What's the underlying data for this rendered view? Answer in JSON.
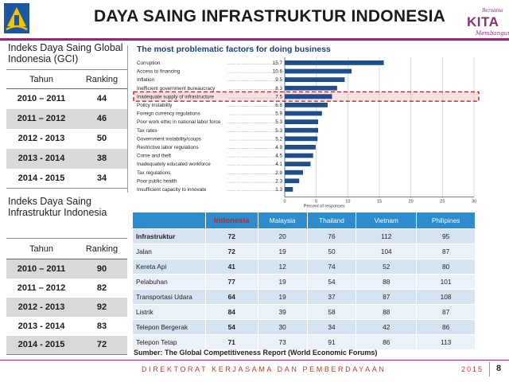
{
  "header": {
    "title": "DAYA SAING INFRASTRUKTUR INDONESIA",
    "logo_right": {
      "top": "Bersama",
      "main": "KITA",
      "bottom": "Membangun"
    },
    "colors": {
      "accent": "#8c2a6e",
      "logo_yellow": "#f2c400",
      "logo_blue": "#1f56a4"
    }
  },
  "gci": {
    "heading": "Indeks Daya Saing Global Indonesia (GCI)",
    "col_year": "Tahun",
    "col_rank": "Ranking",
    "rows": [
      {
        "year": "2010 – 2011",
        "rank": "44"
      },
      {
        "year": "2011 – 2012",
        "rank": "46"
      },
      {
        "year": "2012 - 2013",
        "rank": "50"
      },
      {
        "year": "2013 - 2014",
        "rank": "38"
      },
      {
        "year": "2014 - 2015",
        "rank": "34"
      }
    ]
  },
  "infra": {
    "heading": "Indeks Daya Saing Infrastruktur Indonesia",
    "col_year": "Tahun",
    "col_rank": "Ranking",
    "rows": [
      {
        "year": "2010 – 2011",
        "rank": "90"
      },
      {
        "year": "2011 – 2012",
        "rank": "82"
      },
      {
        "year": "2012 - 2013",
        "rank": "92"
      },
      {
        "year": "2013 - 2014",
        "rank": "83"
      },
      {
        "year": "2014 - 2015",
        "rank": "72"
      }
    ]
  },
  "chart_data": {
    "type": "bar",
    "orientation": "horizontal",
    "title": "The most problematic factors for doing business",
    "xlabel": "Percent of responses",
    "xlim": [
      0,
      30
    ],
    "xticks": [
      "0",
      "5",
      "10",
      "15",
      "20",
      "25",
      "30"
    ],
    "bar_color": "#1f4e8c",
    "highlight_color": "#c0272d",
    "highlight_index": 4,
    "categories": [
      "Corruption",
      "Access to financing",
      "Inflation",
      "Inefficient government bureaucracy",
      "Inadequate supply of infrastructure",
      "Policy instability",
      "Foreign currency regulations",
      "Poor work ethic in national labor force",
      "Tax rates",
      "Government instability/coups",
      "Restrictive labor regulations",
      "Crime and theft",
      "Inadequately educated workforce",
      "Tax regulations",
      "Poor public health",
      "Insufficient capacity to innovate"
    ],
    "values": [
      15.7,
      10.6,
      9.5,
      8.3,
      7.5,
      6.8,
      5.9,
      5.3,
      5.3,
      5.2,
      4.9,
      4.5,
      4.1,
      2.9,
      2.3,
      1.3
    ],
    "value_labels": [
      "15.7",
      "10.6",
      "9.5",
      "8.3",
      "7.5",
      "6.8",
      "5.9",
      "5.3",
      "5.3",
      "5.2",
      "4.9",
      "4.5",
      "4.1",
      "2.9",
      "2.3",
      "1.3"
    ]
  },
  "comparison": {
    "columns": [
      "",
      "Indonesia",
      "Malaysia",
      "Thailand",
      "Vietnam",
      "Philipines"
    ],
    "rows": [
      {
        "sector": "Infrastruktur",
        "values": [
          "72",
          "20",
          "76",
          "112",
          "95"
        ]
      },
      {
        "sector": "Jalan",
        "values": [
          "72",
          "19",
          "50",
          "104",
          "87"
        ]
      },
      {
        "sector": "Kereta Api",
        "values": [
          "41",
          "12",
          "74",
          "52",
          "80"
        ]
      },
      {
        "sector": "Pelabuhan",
        "values": [
          "77",
          "19",
          "54",
          "88",
          "101"
        ]
      },
      {
        "sector": "Transportasi Udara",
        "values": [
          "64",
          "19",
          "37",
          "87",
          "108"
        ]
      },
      {
        "sector": "Listrik",
        "values": [
          "84",
          "39",
          "58",
          "88",
          "87"
        ]
      },
      {
        "sector": "Telepon Bergerak",
        "values": [
          "54",
          "30",
          "34",
          "42",
          "86"
        ]
      },
      {
        "sector": "Telepon Tetap",
        "values": [
          "71",
          "73",
          "91",
          "86",
          "113"
        ]
      }
    ]
  },
  "source": "Sumber: The Global Competitiveness Report (World Economic Forums)",
  "footer": {
    "text": "DIREKTORAT KERJASAMA DAN PEMBERDAYAAN",
    "year": "2015",
    "page": "8"
  }
}
